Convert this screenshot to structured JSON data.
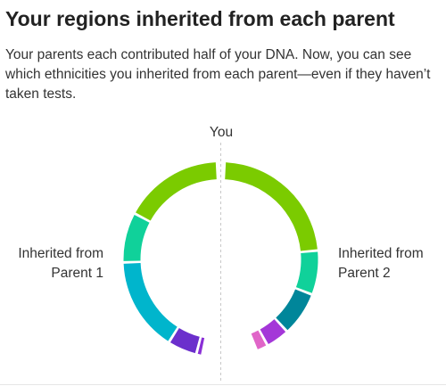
{
  "header": {
    "title": "Your regions inherited from each parent",
    "description": "Your parents each contributed half of your DNA. Now, you can see which ethnicities you inherited from each parent—even if they haven’t taken tests."
  },
  "labels": {
    "you": "You",
    "parent1_line1": "Inherited from",
    "parent1_line2": "Parent 1",
    "parent2_line1": "Inherited from",
    "parent2_line2": "Parent 2"
  },
  "chart_data": {
    "type": "pie",
    "variant": "split-donut",
    "grid": false,
    "series": [
      {
        "name": "Inherited from Parent 1",
        "side": "left",
        "share_of_half": [
          0.34,
          0.17,
          0.32,
          0.1,
          0.02
        ],
        "colors": [
          "#7bcb00",
          "#10d19a",
          "#00b5cc",
          "#6b2fcc",
          "#8a2fd6"
        ]
      },
      {
        "name": "Inherited from Parent 2",
        "side": "right",
        "share_of_half": [
          0.47,
          0.15,
          0.15,
          0.08,
          0.04
        ],
        "colors": [
          "#7bcb00",
          "#10d19a",
          "#00869a",
          "#a437d8",
          "#e065c8"
        ]
      }
    ]
  }
}
